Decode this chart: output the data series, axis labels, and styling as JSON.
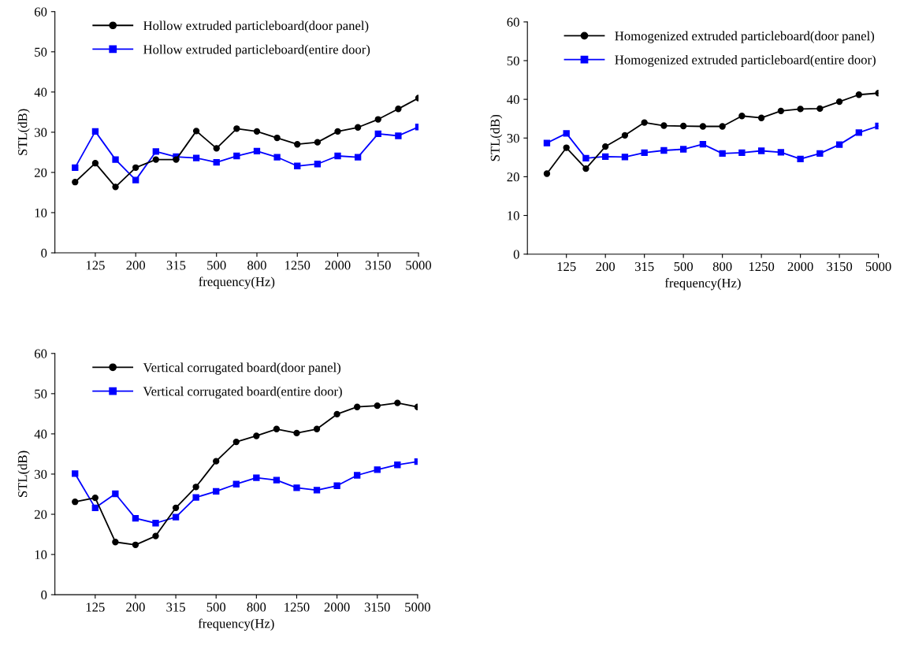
{
  "chart_data": [
    {
      "type": "line",
      "xlabel": "frequency(Hz)",
      "ylabel": "STL(dB)",
      "categories": [
        null,
        "125",
        null,
        "200",
        null,
        "315",
        null,
        "500",
        null,
        "800",
        null,
        "1250",
        null,
        "2000",
        null,
        "3150",
        null,
        "5000"
      ],
      "ylim": [
        0,
        60
      ],
      "yticks": [
        0,
        10,
        20,
        30,
        40,
        50,
        60
      ],
      "grid": false,
      "legend": "top left",
      "line_style": "solid",
      "series": [
        {
          "name": "Hollow extruded particleboard(door panel)",
          "color": "#000000",
          "marker": "circle",
          "values": [
            17.6,
            22.3,
            16.4,
            21.2,
            23.2,
            23.2,
            30.3,
            26.0,
            30.9,
            30.2,
            28.6,
            27.0,
            27.5,
            30.2,
            31.2,
            33.2,
            35.8,
            38.5
          ]
        },
        {
          "name": "Hollow extruded particleboard(entire door)",
          "color": "#0000ff",
          "marker": "square",
          "values": [
            21.2,
            30.2,
            23.2,
            18.1,
            25.2,
            23.9,
            23.6,
            22.5,
            24.1,
            25.3,
            23.8,
            21.6,
            22.1,
            24.1,
            23.8,
            29.6,
            29.1,
            31.3
          ]
        }
      ]
    },
    {
      "type": "line",
      "xlabel": "frequency(Hz)",
      "ylabel": "STL(dB)",
      "categories": [
        null,
        "125",
        null,
        "200",
        null,
        "315",
        null,
        "500",
        null,
        "800",
        null,
        "1250",
        null,
        "2000",
        null,
        "3150",
        null,
        "5000"
      ],
      "ylim": [
        0,
        60
      ],
      "yticks": [
        0,
        10,
        20,
        30,
        40,
        50,
        60
      ],
      "grid": false,
      "legend": "top left",
      "line_style": "solid",
      "series": [
        {
          "name": "Homogenized extruded particleboard(door panel)",
          "color": "#000000",
          "marker": "circle",
          "values": [
            20.8,
            27.5,
            22.1,
            27.8,
            30.7,
            34.0,
            33.2,
            33.1,
            33.0,
            33.0,
            35.7,
            35.2,
            37.0,
            37.5,
            37.6,
            39.4,
            41.2,
            41.6
          ]
        },
        {
          "name": "Homogenized extruded particleboard(entire door)",
          "color": "#0000ff",
          "marker": "square",
          "values": [
            28.7,
            31.2,
            24.8,
            25.2,
            25.1,
            26.2,
            26.8,
            27.1,
            28.4,
            26.0,
            26.2,
            26.7,
            26.3,
            24.6,
            26.0,
            28.3,
            31.4,
            33.1
          ]
        }
      ]
    },
    {
      "type": "line",
      "xlabel": "frequency(Hz)",
      "ylabel": "STL(dB)",
      "categories": [
        null,
        "125",
        null,
        "200",
        null,
        "315",
        null,
        "500",
        null,
        "800",
        null,
        "1250",
        null,
        "2000",
        null,
        "3150",
        null,
        "5000"
      ],
      "ylim": [
        0,
        60
      ],
      "yticks": [
        0,
        10,
        20,
        30,
        40,
        50,
        60
      ],
      "grid": false,
      "legend": "top left",
      "line_style": "solid",
      "series": [
        {
          "name": "Vertical corrugated board(door panel)",
          "color": "#000000",
          "marker": "circle",
          "values": [
            23.1,
            24.1,
            13.1,
            12.4,
            14.6,
            21.6,
            26.8,
            33.2,
            38.0,
            39.5,
            41.2,
            40.2,
            41.2,
            44.9,
            46.7,
            47.0,
            47.7,
            46.7
          ]
        },
        {
          "name": "Vertical corrugated board(entire door)",
          "color": "#0000ff",
          "marker": "square",
          "values": [
            30.1,
            21.6,
            25.1,
            19.0,
            17.8,
            19.3,
            24.2,
            25.7,
            27.5,
            29.1,
            28.5,
            26.6,
            26.0,
            27.1,
            29.7,
            31.1,
            32.3,
            33.1
          ]
        }
      ]
    }
  ]
}
